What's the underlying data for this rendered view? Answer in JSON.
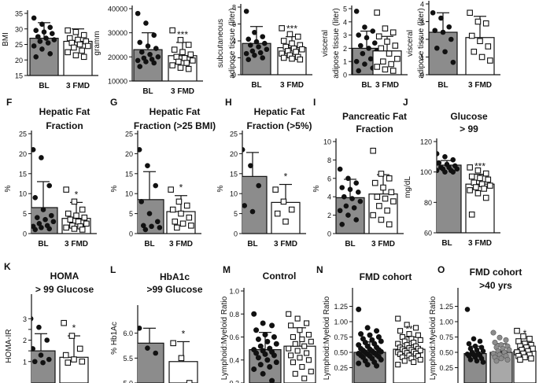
{
  "style": {
    "bar_fill_bl": "#8c8c8c",
    "bar_fill_fmd": "#ffffff",
    "stroke": "#111111"
  },
  "chart_data": [
    {
      "id": "bmi",
      "type": "bar",
      "title": [],
      "panel_letter": "",
      "ylabel": "BMI",
      "ylim": [
        15,
        35
      ],
      "yticks": [
        15,
        20,
        25,
        30,
        35
      ],
      "categories": [
        "BL",
        "3 FMD"
      ],
      "values": [
        27.0,
        26.0
      ],
      "errors": [
        5.0,
        4.0
      ],
      "significance": "",
      "points": [
        [
          33.5,
          31.5,
          30.5,
          29.5,
          29.0,
          28.5,
          27.5,
          27.0,
          26.5,
          26.0,
          25.5,
          24.5,
          23.5,
          22.0,
          21.0
        ],
        [
          29.5,
          29.0,
          28.0,
          27.0,
          26.5,
          26.0,
          25.5,
          25.0,
          24.5,
          24.0,
          23.0,
          22.5,
          21.5,
          21.0
        ]
      ]
    },
    {
      "id": "weight",
      "type": "bar",
      "title": [],
      "panel_letter": "",
      "ylabel": "gramm",
      "ylim": [
        10000,
        40000
      ],
      "yticks": [
        10000,
        20000,
        30000,
        40000
      ],
      "categories": [
        "BL",
        "3 FMD"
      ],
      "values": [
        23000,
        20500
      ],
      "errors": [
        7000,
        5500
      ],
      "significance": "***",
      "points": [
        [
          38000,
          34000,
          29000,
          26000,
          24500,
          23500,
          22000,
          21000,
          20000,
          19500,
          19000,
          18500,
          18000,
          17500,
          16000
        ],
        [
          31000,
          27000,
          25000,
          23000,
          22000,
          21000,
          20000,
          19500,
          18500,
          18000,
          17500,
          16500,
          15500,
          15000
        ]
      ]
    },
    {
      "id": "subcutaneous",
      "type": "bar",
      "title": [],
      "panel_letter": "",
      "ylabel_lines": [
        "subcutaneous",
        "adipose tissue (liter)"
      ],
      "ylim": [
        0,
        8
      ],
      "yticks": [
        0,
        2,
        4,
        6,
        8
      ],
      "categories": [
        "BL",
        "3 FMD"
      ],
      "values": [
        3.7,
        3.2
      ],
      "errors": [
        2.0,
        1.3
      ],
      "significance": "***",
      "points": [
        [
          7.5,
          5.0,
          4.5,
          4.2,
          3.9,
          3.7,
          3.5,
          3.3,
          3.0,
          2.8,
          2.6,
          2.5,
          2.3,
          2.0,
          1.8
        ],
        [
          5.5,
          4.8,
          4.5,
          4.0,
          3.7,
          3.5,
          3.3,
          3.1,
          3.0,
          2.8,
          2.7,
          2.5,
          2.3,
          2.1,
          2.0,
          1.9,
          1.8
        ]
      ]
    },
    {
      "id": "visceral",
      "type": "bar",
      "title": [],
      "panel_letter": "",
      "ylabel_lines": [
        "visceral",
        "adipose tissue (liter)"
      ],
      "ylim": [
        0,
        5
      ],
      "yticks": [
        0,
        1,
        2,
        3,
        4,
        5
      ],
      "categories": [
        "BL",
        "3 FMD"
      ],
      "values": [
        2.0,
        1.8
      ],
      "errors": [
        1.3,
        1.1
      ],
      "significance": "",
      "points": [
        [
          4.8,
          3.6,
          3.3,
          3.0,
          2.8,
          2.4,
          2.2,
          2.0,
          1.8,
          1.6,
          1.2,
          1.0,
          0.8,
          0.5,
          0.3
        ],
        [
          4.7,
          3.5,
          3.2,
          2.9,
          2.5,
          2.2,
          2.0,
          1.6,
          1.2,
          1.0,
          0.8,
          0.6,
          0.4,
          0.3
        ]
      ]
    },
    {
      "id": "visceral40",
      "type": "bar",
      "title": [],
      "panel_letter": "",
      "ylabel_lines": [
        "visceral",
        "adipose tissue (liter)"
      ],
      "ylim": [
        0,
        4
      ],
      "yticks": [
        0,
        1,
        2,
        3,
        4
      ],
      "categories": [
        "BL",
        "3 FMD"
      ],
      "values": [
        2.4,
        2.1
      ],
      "errors": [
        1.1,
        1.2
      ],
      "significance": "",
      "points": [
        [
          3.5,
          3.2,
          2.7,
          2.5,
          2.4,
          2.0,
          1.5,
          1.3,
          0.7
        ],
        [
          3.5,
          3.0,
          2.9,
          2.2,
          1.9,
          1.6,
          1.3,
          1.0,
          0.8
        ]
      ]
    },
    {
      "id": "hff",
      "type": "bar",
      "title": [
        "Hepatic Fat",
        "Fraction"
      ],
      "panel_letter": "F",
      "ylabel": "%",
      "ylim": [
        0,
        25
      ],
      "yticks": [
        0,
        5,
        10,
        15,
        20,
        25
      ],
      "categories": [
        "BL",
        "3 FMD"
      ],
      "values": [
        6.5,
        3.8
      ],
      "errors": [
        6.5,
        4.0
      ],
      "significance": "*",
      "points": [
        [
          21.0,
          19.0,
          12.0,
          9.0,
          6.0,
          4.5,
          4.0,
          3.5,
          3.0,
          2.5,
          2.0,
          1.8,
          1.5,
          1.2,
          1.0
        ],
        [
          11.0,
          8.0,
          6.0,
          5.0,
          4.5,
          4.0,
          3.5,
          3.0,
          2.5,
          2.0,
          1.8,
          1.5,
          1.2,
          1.0
        ]
      ]
    },
    {
      "id": "hff25",
      "type": "bar",
      "title": [
        "Hepatic Fat",
        "Fraction (>25 BMI)"
      ],
      "panel_letter": "G",
      "ylabel": "%",
      "ylim": [
        0,
        25
      ],
      "yticks": [
        0,
        5,
        10,
        15,
        20,
        25
      ],
      "categories": [
        "BL",
        "3 FMD"
      ],
      "values": [
        8.5,
        5.5
      ],
      "errors": [
        7.0,
        4.0
      ],
      "significance": "*",
      "points": [
        [
          21.0,
          17.0,
          12.0,
          8.0,
          5.0,
          3.0,
          2.0,
          1.8,
          1.5,
          1.0
        ],
        [
          11.0,
          8.0,
          7.0,
          6.0,
          5.0,
          4.0,
          3.0,
          2.5,
          2.0,
          1.5
        ]
      ]
    },
    {
      "id": "hff5",
      "type": "bar",
      "title": [
        "Hepatic Fat",
        "Fraction (>5%)"
      ],
      "panel_letter": "H",
      "ylabel": "%",
      "ylim": [
        0,
        25
      ],
      "yticks": [
        0,
        5,
        10,
        15,
        20,
        25
      ],
      "categories": [
        "BL",
        "3 FMD"
      ],
      "values": [
        14.3,
        7.8
      ],
      "errors": [
        6.0,
        4.5
      ],
      "significance": "*",
      "points": [
        [
          21.0,
          17.0,
          12.0,
          7.0,
          5.5
        ],
        [
          11.0,
          8.0,
          6.0,
          5.0,
          3.0
        ]
      ]
    },
    {
      "id": "pancreatic",
      "type": "bar",
      "title": [
        "Pancreatic Fat",
        "Fraction"
      ],
      "panel_letter": "I",
      "ylabel": "%",
      "ylim": [
        0,
        10
      ],
      "yticks": [
        0,
        2,
        4,
        6,
        8,
        10
      ],
      "categories": [
        "BL",
        "3 FMD"
      ],
      "values": [
        3.9,
        4.3
      ],
      "errors": [
        2.0,
        2.1
      ],
      "significance": "",
      "points": [
        [
          7.0,
          6.0,
          5.5,
          5.0,
          4.8,
          4.5,
          4.0,
          3.8,
          3.5,
          3.0,
          2.8,
          2.5,
          2.0,
          1.5,
          1.0
        ],
        [
          9.0,
          6.5,
          6.0,
          5.5,
          5.0,
          4.5,
          4.0,
          3.8,
          3.5,
          3.0,
          2.5,
          2.0,
          1.5,
          1.0
        ]
      ]
    },
    {
      "id": "glucose",
      "type": "bar",
      "title": [
        "Glucose",
        "> 99"
      ],
      "panel_letter": "J",
      "ylabel": "mg/dL",
      "ylim": [
        60,
        120
      ],
      "yticks": [
        60,
        80,
        100,
        120
      ],
      "categories": [
        "BL",
        "3 FMD"
      ],
      "values": [
        104.5,
        92.0
      ],
      "errors": [
        3.0,
        6.5
      ],
      "significance": "***",
      "points": [
        [
          112,
          110,
          108,
          106,
          105,
          104,
          103,
          103,
          102,
          102,
          101,
          101,
          100,
          100
        ],
        [
          103,
          101,
          99,
          97,
          96,
          95,
          93,
          92,
          91,
          90,
          89,
          88,
          86,
          83,
          72
        ]
      ]
    },
    {
      "id": "homa",
      "type": "bar",
      "title": [
        "HOMA",
        "> 99 Glucose"
      ],
      "panel_letter": "K",
      "ylabel": "HOMA-IR",
      "ylim": [
        0,
        4
      ],
      "yticks": [
        1.0,
        1.5,
        2.0,
        2.5,
        3.0
      ],
      "ytick_labels": [
        "1",
        "",
        "2",
        "",
        "3"
      ],
      "ymin_visible": 0.9,
      "categories": [
        "BL",
        "3 FMD"
      ],
      "values": [
        1.5,
        1.2
      ],
      "errors": [
        0.8,
        1.0
      ],
      "significance": "*",
      "points": [
        [
          3.0,
          2.6,
          2.0,
          1.6,
          1.3,
          1.1,
          1.0,
          0.95
        ],
        [
          2.8,
          2.2,
          1.6,
          1.3,
          1.1,
          1.0,
          0.95
        ]
      ]
    },
    {
      "id": "hba1c",
      "type": "bar",
      "title": [
        "HbA1c",
        ">99 Glucose"
      ],
      "panel_letter": "L",
      "ylabel": "% Hb1Ac",
      "ylim": [
        5.0,
        6.5
      ],
      "yticks": [
        5.0,
        5.5,
        6.0
      ],
      "ytick_labels": [
        "5.0",
        "5.5",
        "6.0"
      ],
      "categories": [
        "BL",
        "3 FMD"
      ],
      "values": [
        5.8,
        5.43
      ],
      "errors": [
        0.3,
        0.4
      ],
      "significance": "*",
      "points": [
        [
          6.1,
          5.7,
          5.6
        ],
        [
          5.8,
          5.5,
          5.0
        ]
      ]
    },
    {
      "id": "control",
      "type": "bar",
      "title": [
        "Control"
      ],
      "panel_letter": "M",
      "ylabel": "Lymphoid:Myeloid Ratio",
      "ylim": [
        0.2,
        1.0
      ],
      "yticks": [
        0.2,
        0.4,
        0.6,
        0.8,
        1.0
      ],
      "ytick_labels": [
        "0.2",
        "0.4",
        "0.6",
        "0.8",
        "1.0"
      ],
      "categories": [
        "",
        ""
      ],
      "values": [
        0.49,
        0.52
      ],
      "errors": [
        0.15,
        0.16
      ],
      "significance": "",
      "points": [
        [
          0.8,
          0.72,
          0.7,
          0.66,
          0.62,
          0.6,
          0.58,
          0.56,
          0.54,
          0.52,
          0.5,
          0.49,
          0.48,
          0.47,
          0.46,
          0.45,
          0.44,
          0.42,
          0.4,
          0.38,
          0.36,
          0.34,
          0.32,
          0.28,
          0.22
        ],
        [
          0.8,
          0.76,
          0.72,
          0.7,
          0.66,
          0.62,
          0.6,
          0.58,
          0.56,
          0.54,
          0.52,
          0.5,
          0.48,
          0.46,
          0.44,
          0.42,
          0.4,
          0.38,
          0.34,
          0.3,
          0.28,
          0.24
        ]
      ]
    },
    {
      "id": "fmd_cohort",
      "type": "bar",
      "title": [
        "FMD cohort"
      ],
      "panel_letter": "N",
      "ylabel": "Lymphoid:Myeloid Ratio",
      "ylim": [
        0.0,
        1.5
      ],
      "yticks": [
        0.25,
        0.5,
        0.75,
        1.0,
        1.25
      ],
      "ytick_labels": [
        "0.25",
        "0.50",
        "0.75",
        "1.00",
        "1.25"
      ],
      "categories": [
        "",
        ""
      ],
      "values": [
        0.5,
        0.55
      ],
      "errors": [
        0.17,
        0.2
      ],
      "significance": "**",
      "points": [
        [
          1.2,
          0.9,
          0.85,
          0.8,
          0.78,
          0.75,
          0.72,
          0.7,
          0.68,
          0.66,
          0.64,
          0.62,
          0.6,
          0.58,
          0.56,
          0.55,
          0.54,
          0.53,
          0.52,
          0.51,
          0.5,
          0.49,
          0.48,
          0.47,
          0.46,
          0.45,
          0.44,
          0.43,
          0.42,
          0.4,
          0.38,
          0.36,
          0.34,
          0.32,
          0.3,
          0.28
        ],
        [
          1.05,
          0.95,
          0.9,
          0.85,
          0.8,
          0.78,
          0.75,
          0.72,
          0.7,
          0.68,
          0.66,
          0.64,
          0.62,
          0.6,
          0.58,
          0.57,
          0.56,
          0.55,
          0.54,
          0.53,
          0.52,
          0.51,
          0.5,
          0.49,
          0.48,
          0.47,
          0.45,
          0.44,
          0.42,
          0.4,
          0.38,
          0.36,
          0.34,
          0.3
        ]
      ]
    },
    {
      "id": "fmd_cohort40",
      "type": "bar",
      "title": [
        "FMD cohort",
        ">40 yrs"
      ],
      "panel_letter": "O",
      "ylabel": "Lymphoid:Myeloid Ratio",
      "ylim": [
        0.0,
        1.5
      ],
      "yticks": [
        0.25,
        0.5,
        0.75,
        1.0,
        1.25
      ],
      "ytick_labels": [
        "0.25",
        "0.50",
        "0.75",
        "1.00",
        "1.25"
      ],
      "categories": [
        "",
        "",
        ""
      ],
      "values": [
        0.48,
        0.5,
        0.52
      ],
      "errors": [
        0.12,
        0.14,
        0.16
      ],
      "significance": "*",
      "points": [
        [
          1.2,
          0.72,
          0.68,
          0.64,
          0.6,
          0.58,
          0.56,
          0.54,
          0.52,
          0.5,
          0.48,
          0.47,
          0.46,
          0.45,
          0.44,
          0.42,
          0.4,
          0.38,
          0.36,
          0.34
        ],
        [
          0.82,
          0.74,
          0.7,
          0.66,
          0.62,
          0.6,
          0.58,
          0.56,
          0.54,
          0.52,
          0.5,
          0.48,
          0.46,
          0.44,
          0.42,
          0.4,
          0.38,
          0.36
        ],
        [
          0.85,
          0.76,
          0.72,
          0.68,
          0.64,
          0.62,
          0.6,
          0.58,
          0.56,
          0.54,
          0.52,
          0.5,
          0.48,
          0.46,
          0.44,
          0.42,
          0.4,
          0.38
        ]
      ]
    }
  ]
}
